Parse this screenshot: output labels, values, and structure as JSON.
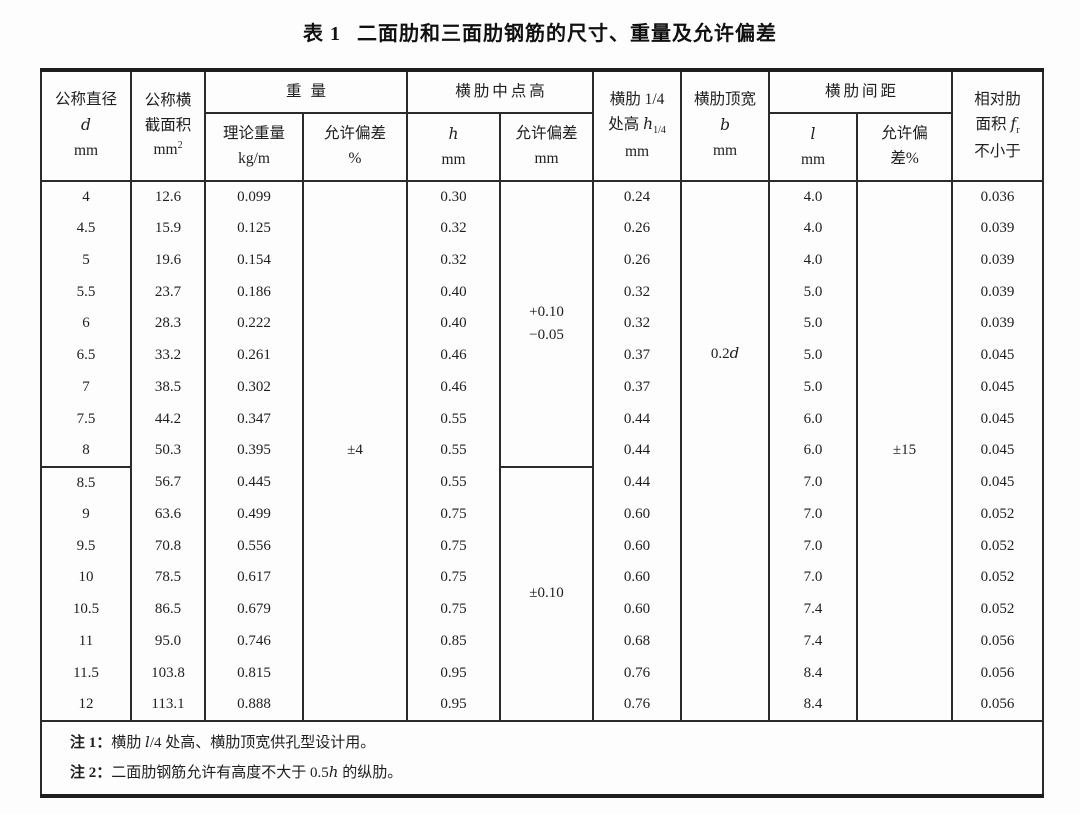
{
  "title": {
    "label": "表 1",
    "text": "二面肋和三面肋钢筋的尺寸、重量及允许偏差"
  },
  "header": {
    "c_d": {
      "line1": "公称直径",
      "var": "d",
      "unit": "mm"
    },
    "c_area": {
      "line1": "公称横",
      "line2": "截面积",
      "unit_base": "mm",
      "unit_sup": "2"
    },
    "g_weight": {
      "label": "重量"
    },
    "c_wt": {
      "line1": "理论重量",
      "line2": "kg/m"
    },
    "c_wt_dev": {
      "line1": "允许偏差",
      "line2": "%"
    },
    "g_h": {
      "label": "横肋中点高"
    },
    "c_h": {
      "var": "h",
      "unit": "mm"
    },
    "c_h_dev": {
      "line1": "允许偏差",
      "line2": "mm"
    },
    "c_h14": {
      "line1": "横肋 1/4",
      "line2_pre": "处高 ",
      "line2_var": "h",
      "line2_sub": "1/4",
      "unit": "mm"
    },
    "c_b": {
      "line1": "横肋顶宽",
      "var": "b",
      "unit": "mm"
    },
    "g_l": {
      "label": "横肋间距"
    },
    "c_l": {
      "var": "l",
      "unit": "mm"
    },
    "c_l_dev": {
      "line1": "允许偏",
      "line2": "差%"
    },
    "c_fr": {
      "line1": "相对肋",
      "line2_pre": "面积 ",
      "line2_var": "f",
      "line2_sub": "r",
      "line3": "不小于"
    }
  },
  "merged": {
    "wt_dev": "±4",
    "h_dev_top_plus": "+0.10",
    "h_dev_top_minus": "−0.05",
    "h_dev_bottom": "±0.10",
    "b_prefix": "0.2",
    "b_var": "d",
    "l_dev": "±15"
  },
  "rows": [
    {
      "d": "4",
      "area": "12.6",
      "wt": "0.099",
      "h": "0.30",
      "h14": "0.24",
      "l": "4.0",
      "fr": "0.036"
    },
    {
      "d": "4.5",
      "area": "15.9",
      "wt": "0.125",
      "h": "0.32",
      "h14": "0.26",
      "l": "4.0",
      "fr": "0.039"
    },
    {
      "d": "5",
      "area": "19.6",
      "wt": "0.154",
      "h": "0.32",
      "h14": "0.26",
      "l": "4.0",
      "fr": "0.039"
    },
    {
      "d": "5.5",
      "area": "23.7",
      "wt": "0.186",
      "h": "0.40",
      "h14": "0.32",
      "l": "5.0",
      "fr": "0.039"
    },
    {
      "d": "6",
      "area": "28.3",
      "wt": "0.222",
      "h": "0.40",
      "h14": "0.32",
      "l": "5.0",
      "fr": "0.039"
    },
    {
      "d": "6.5",
      "area": "33.2",
      "wt": "0.261",
      "h": "0.46",
      "h14": "0.37",
      "l": "5.0",
      "fr": "0.045"
    },
    {
      "d": "7",
      "area": "38.5",
      "wt": "0.302",
      "h": "0.46",
      "h14": "0.37",
      "l": "5.0",
      "fr": "0.045"
    },
    {
      "d": "7.5",
      "area": "44.2",
      "wt": "0.347",
      "h": "0.55",
      "h14": "0.44",
      "l": "6.0",
      "fr": "0.045"
    },
    {
      "d": "8",
      "area": "50.3",
      "wt": "0.395",
      "h": "0.55",
      "h14": "0.44",
      "l": "6.0",
      "fr": "0.045"
    },
    {
      "d": "8.5",
      "area": "56.7",
      "wt": "0.445",
      "h": "0.55",
      "h14": "0.44",
      "l": "7.0",
      "fr": "0.045"
    },
    {
      "d": "9",
      "area": "63.6",
      "wt": "0.499",
      "h": "0.75",
      "h14": "0.60",
      "l": "7.0",
      "fr": "0.052"
    },
    {
      "d": "9.5",
      "area": "70.8",
      "wt": "0.556",
      "h": "0.75",
      "h14": "0.60",
      "l": "7.0",
      "fr": "0.052"
    },
    {
      "d": "10",
      "area": "78.5",
      "wt": "0.617",
      "h": "0.75",
      "h14": "0.60",
      "l": "7.0",
      "fr": "0.052"
    },
    {
      "d": "10.5",
      "area": "86.5",
      "wt": "0.679",
      "h": "0.75",
      "h14": "0.60",
      "l": "7.4",
      "fr": "0.052"
    },
    {
      "d": "11",
      "area": "95.0",
      "wt": "0.746",
      "h": "0.85",
      "h14": "0.68",
      "l": "7.4",
      "fr": "0.056"
    },
    {
      "d": "11.5",
      "area": "103.8",
      "wt": "0.815",
      "h": "0.95",
      "h14": "0.76",
      "l": "8.4",
      "fr": "0.056"
    },
    {
      "d": "12",
      "area": "113.1",
      "wt": "0.888",
      "h": "0.95",
      "h14": "0.76",
      "l": "8.4",
      "fr": "0.056"
    }
  ],
  "notes": {
    "n1_label": "注 1：",
    "n1_pre": "横肋 ",
    "n1_var": "l",
    "n1_post": "/4 处高、横肋顶宽供孔型设计用。",
    "n2_label": "注 2：",
    "n2_pre": "二面肋钢筋允许有高度不大于 0.5",
    "n2_var": "h",
    "n2_post": " 的纵肋。"
  }
}
